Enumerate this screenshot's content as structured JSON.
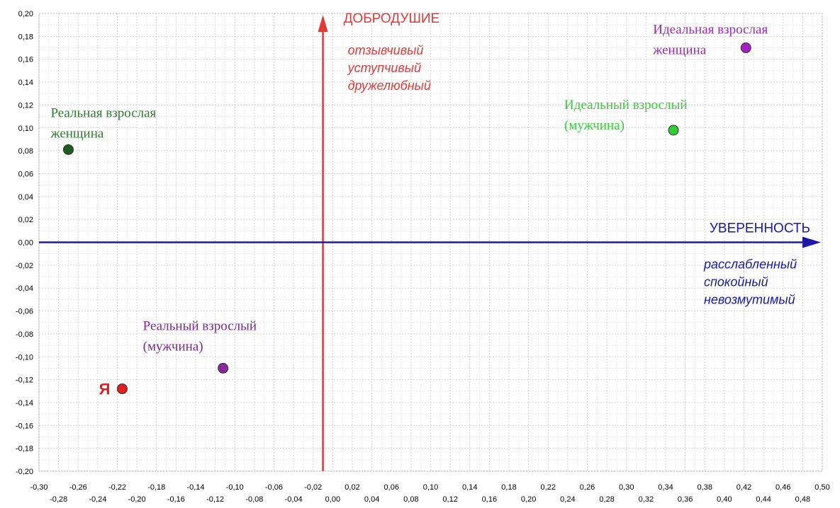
{
  "chart_data": {
    "type": "scatter",
    "xlim": [
      -0.3,
      0.5
    ],
    "ylim": [
      -0.2,
      0.2
    ],
    "x_ticks_top": [
      "-0,30",
      "-0,26",
      "-0,22",
      "-0,18",
      "-0,14",
      "-0,10",
      "-0,06",
      "-0,02",
      "0,02",
      "0,06",
      "0,10",
      "0,14",
      "0,18",
      "0,22",
      "0,26",
      "0,30",
      "0,34",
      "0,38",
      "0,42",
      "0,46",
      "0,50"
    ],
    "x_ticks_bottom": [
      "-0,28",
      "-0,24",
      "-0,20",
      "-0,16",
      "-0,12",
      "-0,08",
      "-0,04",
      "0,00",
      "0,04",
      "0,08",
      "0,12",
      "0,16",
      "0,20",
      "0,24",
      "0,28",
      "0,32",
      "0,36",
      "0,40",
      "0,44",
      "0,48"
    ],
    "y_ticks": [
      "0,20",
      "0,18",
      "0,16",
      "0,14",
      "0,12",
      "0,10",
      "0,08",
      "0,06",
      "0,04",
      "0,02",
      "0,00",
      "-0,02",
      "-0,04",
      "-0,06",
      "-0,08",
      "-0,10",
      "-0,12",
      "-0,14",
      "-0,16",
      "-0,18",
      "-0,20"
    ],
    "grid": true,
    "axes": {
      "horizontal": {
        "title": "УВЕРЕННОСТЬ",
        "descriptors": [
          "расслабленный",
          "спокойный",
          "невозмутимый"
        ],
        "color": "#1a1aa6"
      },
      "vertical": {
        "x": -0.01,
        "title": "ДОБРОДУШИЕ",
        "descriptors": [
          "отзывчивый",
          "уступчивый",
          "дружелюбный"
        ],
        "color": "#e03a3a"
      }
    },
    "points": [
      {
        "x": -0.27,
        "y": 0.081,
        "label_lines": [
          "Реальная взрослая",
          "женщина"
        ],
        "color": "#1f5a1f",
        "label_color": "#2e7a2e"
      },
      {
        "x": 0.422,
        "y": 0.17,
        "label_lines": [
          "Идеальная взрослая",
          "женщина"
        ],
        "color": "#a020c0",
        "label_color": "#9a2ab0"
      },
      {
        "x": 0.348,
        "y": 0.098,
        "label_lines": [
          "Идеальный взрослый",
          "(мужчина)"
        ],
        "color": "#33cc33",
        "label_color": "#3acc3a"
      },
      {
        "x": -0.112,
        "y": -0.11,
        "label_lines": [
          "Реальный взрослый",
          "(мужчина)"
        ],
        "color": "#8a2a9a",
        "label_color": "#7a2a8a"
      },
      {
        "x": -0.215,
        "y": -0.128,
        "label_lines": [
          "Я"
        ],
        "color": "#e02020",
        "label_color": "#e02020"
      }
    ]
  }
}
